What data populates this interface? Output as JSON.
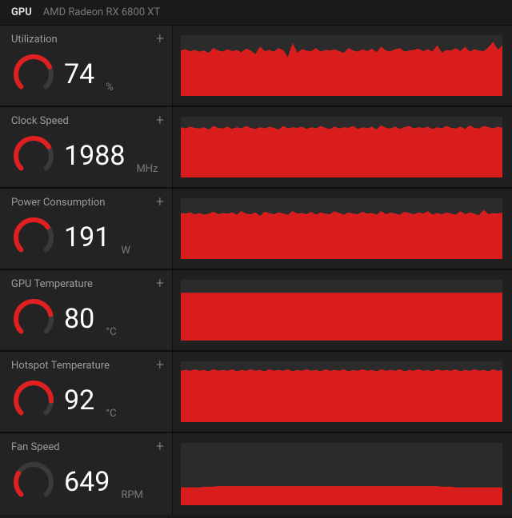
{
  "header": {
    "title": "GPU",
    "model": "AMD Radeon RX 6800 XT"
  },
  "colors": {
    "background": "#1a1a1a",
    "panel_left": "#232323",
    "panel_right": "#202020",
    "chart_bg": "#2b2b2b",
    "chart_fill": "#d91c1c",
    "chart_stroke": "#e02020",
    "gauge_track": "#3a3a3a",
    "gauge_arc": "#e02020",
    "value_text": "#ffffff",
    "label_text": "#9c9c9c",
    "unit_text": "#7a7a7a",
    "divider": "#0d0d0d"
  },
  "typography": {
    "value_fontsize": 34,
    "label_fontsize": 13,
    "unit_fontsize": 13,
    "header_fontsize": 13
  },
  "gauge": {
    "stroke_width": 6,
    "radius": 22,
    "start_angle_deg": 135,
    "sweep_deg": 270
  },
  "chart": {
    "n_points": 70,
    "ylim": [
      0,
      100
    ]
  },
  "metrics": [
    {
      "key": "utilization",
      "label": "Utilization",
      "value": "74",
      "unit": "%",
      "gauge_pct": 74,
      "series": [
        74,
        76,
        73,
        75,
        72,
        74,
        70,
        78,
        74,
        72,
        76,
        73,
        75,
        71,
        77,
        74,
        68,
        80,
        73,
        75,
        72,
        78,
        74,
        62,
        85,
        70,
        76,
        74,
        73,
        78,
        72,
        75,
        74,
        76,
        73,
        70,
        78,
        74,
        72,
        76,
        73,
        77,
        71,
        80,
        74,
        73,
        76,
        78,
        72,
        74,
        75,
        77,
        73,
        76,
        72,
        82,
        70,
        75,
        74,
        78,
        73,
        80,
        72,
        76,
        74,
        73,
        79,
        88,
        75,
        82
      ]
    },
    {
      "key": "clock_speed",
      "label": "Clock Speed",
      "value": "1988",
      "unit": "MHz",
      "gauge_pct": 72,
      "series": [
        82,
        80,
        83,
        81,
        80,
        82,
        78,
        84,
        81,
        80,
        83,
        79,
        82,
        80,
        84,
        81,
        79,
        82,
        80,
        83,
        81,
        78,
        84,
        80,
        82,
        81,
        83,
        79,
        82,
        80,
        84,
        81,
        79,
        83,
        80,
        82,
        81,
        84,
        79,
        82,
        80,
        83,
        78,
        85,
        81,
        80,
        83,
        79,
        82,
        84,
        80,
        82,
        81,
        83,
        79,
        82,
        80,
        84,
        81,
        80,
        83,
        79,
        85,
        81,
        80,
        84,
        82,
        80,
        83,
        81
      ]
    },
    {
      "key": "power",
      "label": "Power Consumption",
      "value": "191",
      "unit": "W",
      "gauge_pct": 70,
      "series": [
        75,
        74,
        76,
        73,
        75,
        72,
        74,
        77,
        73,
        75,
        74,
        76,
        72,
        78,
        74,
        73,
        76,
        70,
        77,
        75,
        73,
        76,
        74,
        72,
        78,
        74,
        75,
        73,
        77,
        72,
        76,
        74,
        73,
        78,
        75,
        72,
        76,
        74,
        73,
        77,
        74,
        75,
        72,
        78,
        73,
        76,
        74,
        72,
        77,
        75,
        73,
        76,
        74,
        78,
        72,
        75,
        73,
        76,
        74,
        72,
        78,
        73,
        76,
        74,
        71,
        80,
        73,
        75,
        74,
        76
      ]
    },
    {
      "key": "gpu_temp",
      "label": "GPU Temperature",
      "value": "80",
      "unit": "°C",
      "gauge_pct": 78,
      "series": [
        78,
        78,
        78,
        78,
        78,
        78,
        78,
        78,
        78,
        78,
        78,
        78,
        78,
        78,
        78,
        78,
        78,
        78,
        78,
        78,
        78,
        78,
        78,
        78,
        78,
        78,
        78,
        78,
        78,
        78,
        78,
        78,
        78,
        78,
        78,
        78,
        78,
        78,
        78,
        78,
        78,
        78,
        78,
        78,
        78,
        78,
        78,
        78,
        78,
        78,
        78,
        78,
        78,
        78,
        78,
        78,
        78,
        78,
        78,
        78,
        78,
        78,
        78,
        78,
        78,
        78,
        78,
        78,
        78,
        78
      ]
    },
    {
      "key": "hotspot",
      "label": "Hotspot Temperature",
      "value": "92",
      "unit": "°C",
      "gauge_pct": 84,
      "series": [
        84,
        85,
        84,
        86,
        84,
        85,
        83,
        86,
        84,
        85,
        84,
        86,
        83,
        85,
        84,
        86,
        84,
        85,
        83,
        86,
        84,
        85,
        84,
        86,
        83,
        85,
        84,
        86,
        84,
        85,
        83,
        86,
        84,
        85,
        84,
        86,
        83,
        85,
        84,
        86,
        84,
        85,
        83,
        86,
        84,
        85,
        84,
        86,
        83,
        85,
        84,
        86,
        84,
        85,
        83,
        86,
        84,
        85,
        84,
        86,
        83,
        85,
        84,
        86,
        84,
        85,
        83,
        86,
        84,
        85
      ]
    },
    {
      "key": "fan_speed",
      "label": "Fan Speed",
      "value": "649",
      "unit": "RPM",
      "gauge_pct": 28,
      "series": [
        28,
        28,
        28,
        28,
        28,
        29,
        29,
        29,
        30,
        30,
        30,
        30,
        30,
        30,
        30,
        30,
        30,
        30,
        30,
        30,
        30,
        30,
        30,
        30,
        30,
        30,
        30,
        30,
        30,
        30,
        30,
        30,
        30,
        30,
        30,
        30,
        30,
        30,
        30,
        30,
        30,
        30,
        30,
        30,
        30,
        30,
        30,
        30,
        30,
        30,
        30,
        30,
        30,
        30,
        30,
        30,
        29,
        29,
        29,
        28,
        28,
        28,
        28,
        28,
        28,
        28,
        28,
        28,
        28,
        28
      ]
    }
  ]
}
